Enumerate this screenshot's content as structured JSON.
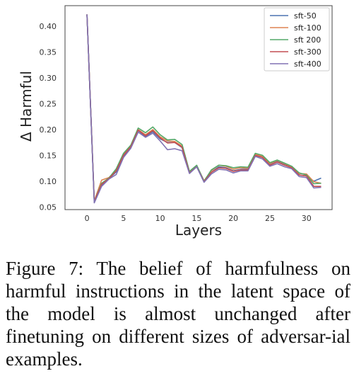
{
  "chart_data": {
    "type": "line",
    "xlabel": "Layers",
    "ylabel": "Δ Harmful",
    "xlim": [
      -3,
      33.5
    ],
    "ylim": [
      0.045,
      0.44
    ],
    "xticks": [
      0,
      5,
      10,
      15,
      20,
      25,
      30
    ],
    "yticks": [
      0.05,
      0.1,
      0.15,
      0.2,
      0.25,
      0.3,
      0.35,
      0.4
    ],
    "grid": false,
    "legend_position": "top-right",
    "x": [
      0,
      1,
      2,
      3,
      4,
      5,
      6,
      7,
      8,
      9,
      10,
      11,
      12,
      13,
      14,
      15,
      16,
      17,
      18,
      19,
      20,
      21,
      22,
      23,
      24,
      25,
      26,
      27,
      28,
      29,
      30,
      31,
      32
    ],
    "series": [
      {
        "name": "sft-50",
        "color": "#4c72b0",
        "values": [
          0.423,
          0.06,
          0.092,
          0.105,
          0.118,
          0.148,
          0.166,
          0.198,
          0.187,
          0.196,
          0.182,
          0.175,
          0.175,
          0.165,
          0.117,
          0.128,
          0.099,
          0.117,
          0.128,
          0.126,
          0.12,
          0.123,
          0.123,
          0.15,
          0.146,
          0.132,
          0.138,
          0.132,
          0.126,
          0.112,
          0.11,
          0.1,
          0.106
        ]
      },
      {
        "name": "sft-100",
        "color": "#dd8452",
        "values": [
          0.423,
          0.062,
          0.102,
          0.107,
          0.121,
          0.152,
          0.168,
          0.2,
          0.19,
          0.2,
          0.186,
          0.178,
          0.177,
          0.168,
          0.118,
          0.13,
          0.101,
          0.12,
          0.131,
          0.129,
          0.123,
          0.126,
          0.125,
          0.152,
          0.148,
          0.134,
          0.14,
          0.134,
          0.128,
          0.115,
          0.114,
          0.099,
          0.096
        ]
      },
      {
        "name": "sft 200",
        "color": "#55a868",
        "values": [
          0.423,
          0.061,
          0.096,
          0.106,
          0.124,
          0.154,
          0.17,
          0.203,
          0.194,
          0.205,
          0.19,
          0.18,
          0.181,
          0.171,
          0.119,
          0.131,
          0.1,
          0.122,
          0.131,
          0.13,
          0.126,
          0.128,
          0.127,
          0.154,
          0.15,
          0.136,
          0.141,
          0.135,
          0.129,
          0.116,
          0.112,
          0.095,
          0.096
        ]
      },
      {
        "name": "sft-300",
        "color": "#c44e52",
        "values": [
          0.423,
          0.061,
          0.094,
          0.105,
          0.12,
          0.15,
          0.167,
          0.199,
          0.188,
          0.198,
          0.184,
          0.174,
          0.175,
          0.166,
          0.116,
          0.128,
          0.099,
          0.117,
          0.126,
          0.125,
          0.119,
          0.122,
          0.122,
          0.15,
          0.146,
          0.131,
          0.137,
          0.131,
          0.126,
          0.112,
          0.11,
          0.09,
          0.09
        ]
      },
      {
        "name": "sft-400",
        "color": "#8172b3",
        "values": [
          0.423,
          0.058,
          0.09,
          0.104,
          0.113,
          0.146,
          0.164,
          0.195,
          0.185,
          0.193,
          0.178,
          0.161,
          0.163,
          0.159,
          0.115,
          0.128,
          0.098,
          0.114,
          0.123,
          0.122,
          0.116,
          0.12,
          0.12,
          0.148,
          0.143,
          0.129,
          0.134,
          0.128,
          0.124,
          0.109,
          0.107,
          0.087,
          0.088
        ]
      }
    ]
  },
  "caption": "Figure 7: The belief of harmfulness on harmful instructions in the latent space of the model is almost unchanged after finetuning on different sizes of adversar-ial examples."
}
